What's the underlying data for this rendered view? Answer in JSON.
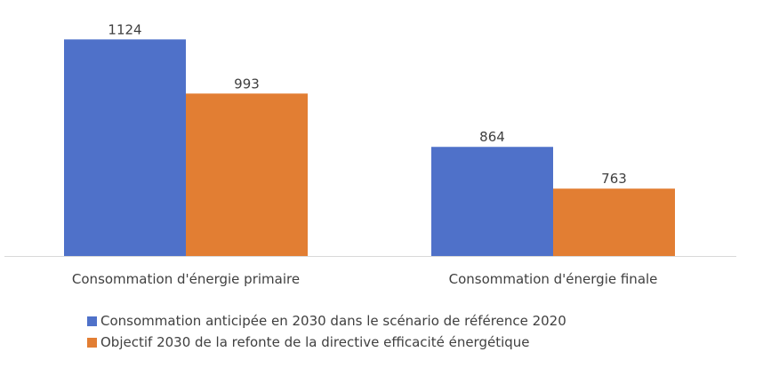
{
  "chart_data": {
    "type": "bar",
    "categories": [
      "Consommation d'énergie primaire",
      "Consommation d'énergie finale"
    ],
    "series": [
      {
        "name": "Consommation anticipée en 2030 dans le scénario de référence 2020",
        "values": [
          1124,
          864
        ],
        "color": "#4F71C9"
      },
      {
        "name": "Objectif 2030 de la refonte de la directive efficacité énergétique",
        "values": [
          993,
          763
        ],
        "color": "#E27E33"
      }
    ],
    "ylim": [
      600,
      1200
    ],
    "grid": false,
    "data_labels": true,
    "legend_placement": "bottom"
  }
}
